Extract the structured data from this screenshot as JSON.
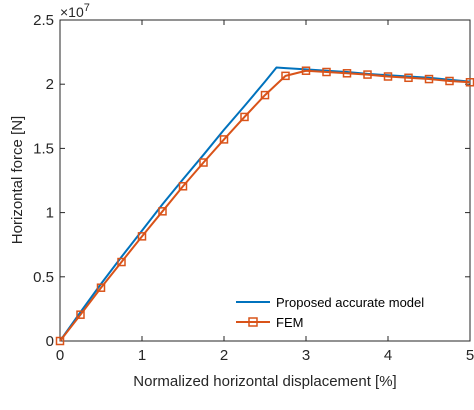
{
  "chart_data": {
    "type": "line",
    "xlabel": "Normalized horizontal displacement [%]",
    "ylabel": "Horizontal force [N]",
    "xlim": [
      0,
      5
    ],
    "ylim": [
      0,
      2.5
    ],
    "y_multiplier_base": "×10",
    "y_multiplier_exponent": "7",
    "xticks": [
      0,
      1,
      2,
      3,
      4,
      5
    ],
    "xtick_labels": [
      "0",
      "1",
      "2",
      "3",
      "4",
      "5"
    ],
    "yticks": [
      0,
      0.5,
      1,
      1.5,
      2,
      2.5
    ],
    "ytick_labels": [
      "0",
      "0.5",
      "1",
      "1.5",
      "2",
      "2.5"
    ],
    "grid": false,
    "legend_position": "bottom-right",
    "series": [
      {
        "name": "Proposed accurate model",
        "color": "#0072BD",
        "marker": "none",
        "x": [
          0,
          0.25,
          0.5,
          0.75,
          1.0,
          1.25,
          1.5,
          1.75,
          2.0,
          2.25,
          2.5,
          2.64,
          2.75,
          3.0,
          3.25,
          3.5,
          3.75,
          4.0,
          4.25,
          4.5,
          4.75,
          5.0
        ],
        "y": [
          0,
          0.225,
          0.445,
          0.655,
          0.86,
          1.065,
          1.26,
          1.45,
          1.645,
          1.83,
          2.02,
          2.13,
          2.125,
          2.115,
          2.105,
          2.095,
          2.08,
          2.07,
          2.06,
          2.05,
          2.035,
          2.02
        ]
      },
      {
        "name": "FEM",
        "color": "#D95319",
        "marker": "square",
        "x": [
          0,
          0.25,
          0.5,
          0.75,
          1.0,
          1.25,
          1.5,
          1.75,
          2.0,
          2.25,
          2.5,
          2.75,
          3.0,
          3.25,
          3.5,
          3.75,
          4.0,
          4.25,
          4.5,
          4.75,
          5.0
        ],
        "y": [
          0,
          0.205,
          0.415,
          0.615,
          0.815,
          1.01,
          1.205,
          1.39,
          1.57,
          1.745,
          1.915,
          2.065,
          2.105,
          2.095,
          2.085,
          2.075,
          2.06,
          2.05,
          2.04,
          2.025,
          2.015
        ]
      }
    ]
  }
}
